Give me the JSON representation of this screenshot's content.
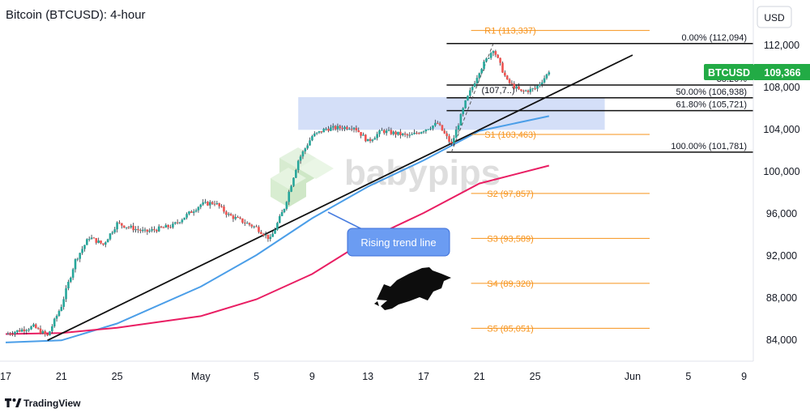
{
  "header": {
    "title": "Bitcoin (BTCUSD): 4-hour"
  },
  "axis": {
    "currency": "USD",
    "y_ticks": [
      84000,
      88000,
      92000,
      96000,
      100000,
      104000,
      108000,
      112000
    ],
    "y_tick_labels": [
      "84,000",
      "88,000",
      "92,000",
      "96,000",
      "100,000",
      "104,000",
      "108,000",
      "112,000"
    ],
    "x_ticks": [
      "17",
      "21",
      "25",
      "May",
      "5",
      "9",
      "13",
      "17",
      "21",
      "25",
      "Jun",
      "5",
      "9"
    ]
  },
  "price_badge": {
    "symbol": "BTCUSD",
    "price": "109,366"
  },
  "watermark": "babypips",
  "footer": {
    "brand": "TradingView"
  },
  "colors": {
    "up": "#26a69a",
    "down": "#ef5350",
    "ma_fast": "#4b9ee8",
    "ma_slow": "#e91e63",
    "pivot": "#f7931a",
    "trend": "#111111",
    "zone": "#c5d4f6",
    "badge": "#22ab45"
  },
  "chart_data": {
    "type": "candlestick",
    "title": "Bitcoin (BTCUSD): 4-hour",
    "y_range": [
      82000,
      114000
    ],
    "x_range": [
      "Apr 17",
      "Jun 9"
    ],
    "last_price": 109366,
    "price_path": [
      [
        "Apr 17",
        84500
      ],
      [
        "Apr 19",
        85200
      ],
      [
        "Apr 20",
        84300
      ],
      [
        "Apr 21",
        87200
      ],
      [
        "Apr 22",
        91500
      ],
      [
        "Apr 23",
        93700
      ],
      [
        "Apr 24",
        93000
      ],
      [
        "Apr 25",
        95000
      ],
      [
        "Apr 27",
        94200
      ],
      [
        "Apr 29",
        94800
      ],
      [
        "May 1",
        96800
      ],
      [
        "May 2",
        97000
      ],
      [
        "May 3",
        95800
      ],
      [
        "May 5",
        94600
      ],
      [
        "May 6",
        93500
      ],
      [
        "May 7",
        96500
      ],
      [
        "May 8",
        101000
      ],
      [
        "May 9",
        103300
      ],
      [
        "May 10",
        104000
      ],
      [
        "May 12",
        104200
      ],
      [
        "May 13",
        102800
      ],
      [
        "May 14",
        103800
      ],
      [
        "May 16",
        103300
      ],
      [
        "May 18",
        104500
      ],
      [
        "May 19",
        102500
      ],
      [
        "May 20",
        106500
      ],
      [
        "May 21",
        109500
      ],
      [
        "May 22",
        111600
      ],
      [
        "May 23",
        108500
      ],
      [
        "May 24",
        107500
      ],
      [
        "May 25",
        107800
      ],
      [
        "May 26",
        109366
      ]
    ],
    "moving_averages": [
      {
        "color": "#4b9ee8",
        "points": [
          [
            "Apr 17",
            83700
          ],
          [
            "Apr 21",
            83900
          ],
          [
            "Apr 25",
            85500
          ],
          [
            "May 1",
            89000
          ],
          [
            "May 5",
            92000
          ],
          [
            "May 9",
            95500
          ],
          [
            "May 13",
            98500
          ],
          [
            "May 17",
            101000
          ],
          [
            "May 21",
            103800
          ],
          [
            "May 26",
            105200
          ]
        ]
      },
      {
        "color": "#e91e63",
        "points": [
          [
            "Apr 17",
            84500
          ],
          [
            "Apr 21",
            84600
          ],
          [
            "Apr 25",
            85100
          ],
          [
            "May 1",
            86200
          ],
          [
            "May 5",
            87800
          ],
          [
            "May 9",
            90200
          ],
          [
            "May 13",
            93500
          ],
          [
            "May 17",
            96000
          ],
          [
            "May 21",
            98800
          ],
          [
            "May 26",
            100500
          ]
        ]
      }
    ],
    "trend_line": {
      "label": "Rising trend line",
      "points": [
        [
          "Apr 20",
          83900
        ],
        [
          "Jun 1",
          111000
        ]
      ]
    },
    "fib_anchor": {
      "points": [
        [
          "May 19",
          101781
        ],
        [
          "May 22",
          112094
        ]
      ]
    },
    "fibonacci": [
      {
        "label": "0.00% (112,094)",
        "level": 112094
      },
      {
        "label": "38.20%",
        "level": 108155
      },
      {
        "label": "50.00% (106,938)",
        "level": 106938
      },
      {
        "label": "61.80% (105,721)",
        "level": 105721
      },
      {
        "label": "100.00% (101,781)",
        "level": 101781
      }
    ],
    "pivots": [
      {
        "label": "R1 (113,337)",
        "level": 113337
      },
      {
        "label": "(107,7..)",
        "level": 107700
      },
      {
        "label": "S1 (103,463)",
        "level": 103463
      },
      {
        "label": "S2 (97,857)",
        "level": 97857
      },
      {
        "label": "S3 (93,589)",
        "level": 93589
      },
      {
        "label": "S4 (89,320)",
        "level": 89320
      },
      {
        "label": "S5 (85,051)",
        "level": 85051
      }
    ],
    "zone": {
      "from": [
        "May 8",
        103900
      ],
      "to": [
        "May 30",
        107000
      ]
    }
  }
}
